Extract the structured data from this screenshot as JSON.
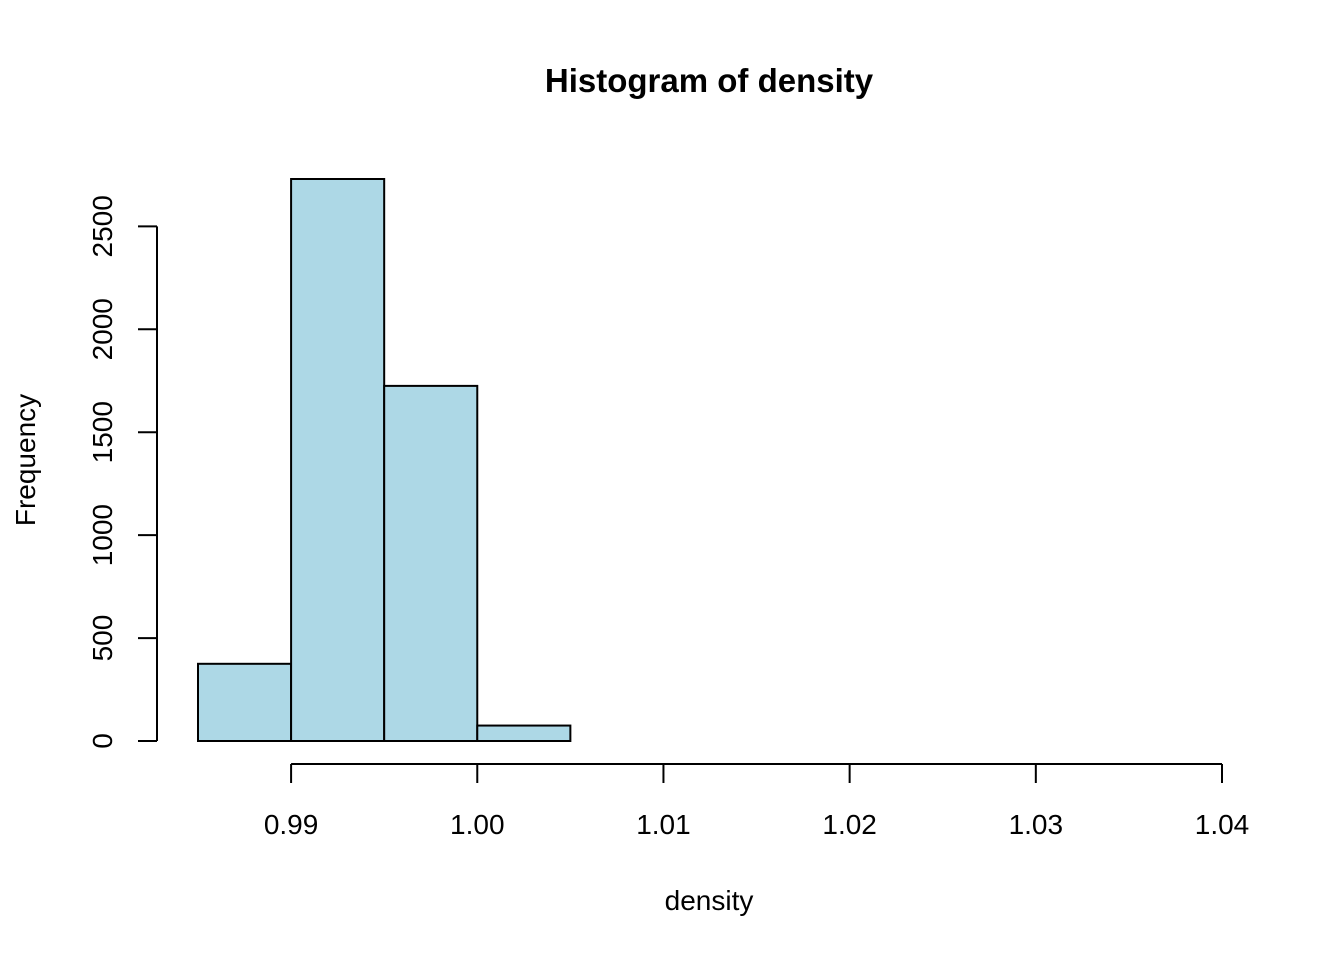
{
  "chart_data": {
    "type": "bar",
    "title": "Histogram of density",
    "xlabel": "density",
    "ylabel": "Frequency",
    "bar_color": "#add8e6",
    "border_color": "#000000",
    "bins": [
      {
        "from": 0.985,
        "to": 0.99,
        "count": 375
      },
      {
        "from": 0.99,
        "to": 0.995,
        "count": 2730
      },
      {
        "from": 0.995,
        "to": 1.0,
        "count": 1725
      },
      {
        "from": 1.0,
        "to": 1.005,
        "count": 75
      },
      {
        "from": 1.005,
        "to": 1.01,
        "count": 0
      },
      {
        "from": 1.01,
        "to": 1.015,
        "count": 0
      },
      {
        "from": 1.015,
        "to": 1.02,
        "count": 0
      },
      {
        "from": 1.02,
        "to": 1.025,
        "count": 0
      },
      {
        "from": 1.025,
        "to": 1.03,
        "count": 0
      },
      {
        "from": 1.03,
        "to": 1.035,
        "count": 0
      },
      {
        "from": 1.035,
        "to": 1.04,
        "count": 0
      }
    ],
    "x_ticks": [
      {
        "value": 0.99,
        "label": "0.99"
      },
      {
        "value": 1.0,
        "label": "1.00"
      },
      {
        "value": 1.01,
        "label": "1.01"
      },
      {
        "value": 1.02,
        "label": "1.02"
      },
      {
        "value": 1.03,
        "label": "1.03"
      },
      {
        "value": 1.04,
        "label": "1.04"
      }
    ],
    "y_ticks": [
      {
        "value": 0,
        "label": "0"
      },
      {
        "value": 500,
        "label": "500"
      },
      {
        "value": 1000,
        "label": "1000"
      },
      {
        "value": 1500,
        "label": "1500"
      },
      {
        "value": 2000,
        "label": "2000"
      },
      {
        "value": 2500,
        "label": "2500"
      }
    ],
    "xlim": [
      0.985,
      1.04
    ],
    "ylim": [
      0,
      2730
    ],
    "grid": false,
    "legend": "none"
  }
}
